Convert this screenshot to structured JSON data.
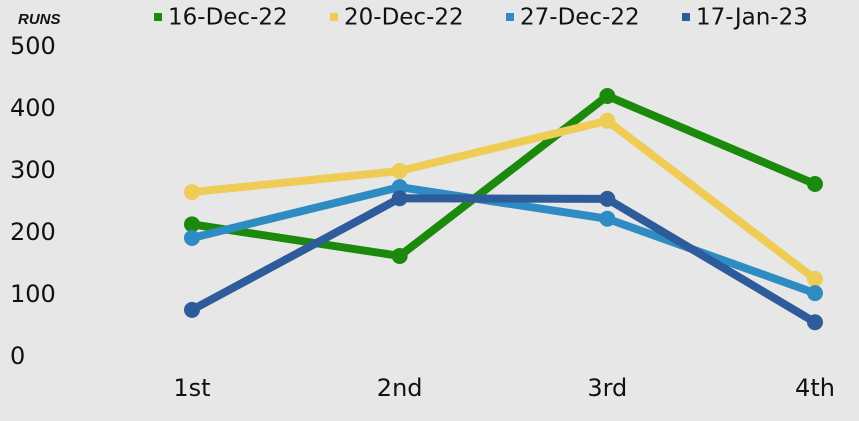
{
  "chart_data": {
    "type": "line",
    "y_label": "RUNS",
    "categories": [
      "1st",
      "2nd",
      "3rd",
      "4th"
    ],
    "series": [
      {
        "name": "16-Dec-22",
        "color": "#1b8a0c",
        "values": [
          214,
          163,
          421,
          279
        ]
      },
      {
        "name": "20-Dec-22",
        "color": "#efcc55",
        "values": [
          266,
          300,
          381,
          126
        ]
      },
      {
        "name": "27-Dec-22",
        "color": "#2f8cc2",
        "values": [
          192,
          274,
          223,
          103
        ]
      },
      {
        "name": "17-Jan-23",
        "color": "#2e5c9b",
        "values": [
          76,
          256,
          255,
          56
        ]
      }
    ],
    "ylim": [
      0,
      500
    ],
    "yticks": [
      0,
      100,
      200,
      300,
      400,
      500
    ],
    "grid": false,
    "legend": "top"
  }
}
